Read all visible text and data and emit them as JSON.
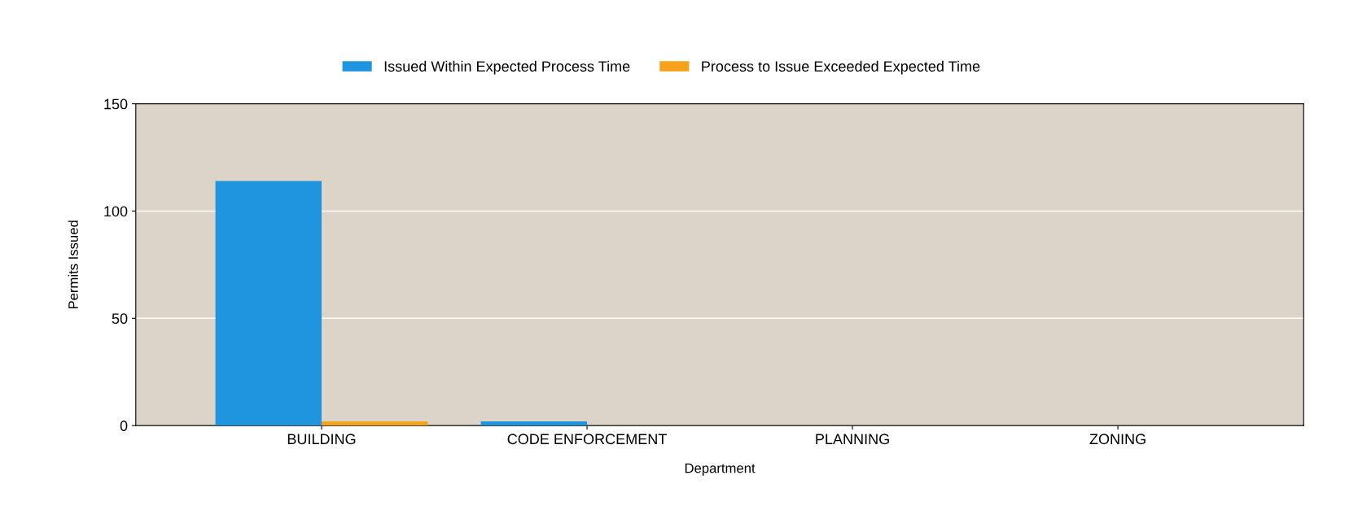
{
  "chart_data": {
    "type": "bar",
    "xlabel": "Department",
    "ylabel": "Permits Issued",
    "categories": [
      "BUILDING",
      "CODE ENFORCEMENT",
      "PLANNING",
      "ZONING"
    ],
    "series": [
      {
        "name": "Issued Within Expected Process Time",
        "color": "#1f95df",
        "values": [
          114,
          2,
          null,
          null
        ]
      },
      {
        "name": "Process to Issue Exceeded Expected Time",
        "color": "#f7a21b",
        "values": [
          2,
          null,
          null,
          null
        ]
      }
    ],
    "ylim": [
      0,
      150
    ],
    "yticks": [
      0,
      50,
      100,
      150
    ],
    "grid": "y",
    "legend": "top"
  }
}
